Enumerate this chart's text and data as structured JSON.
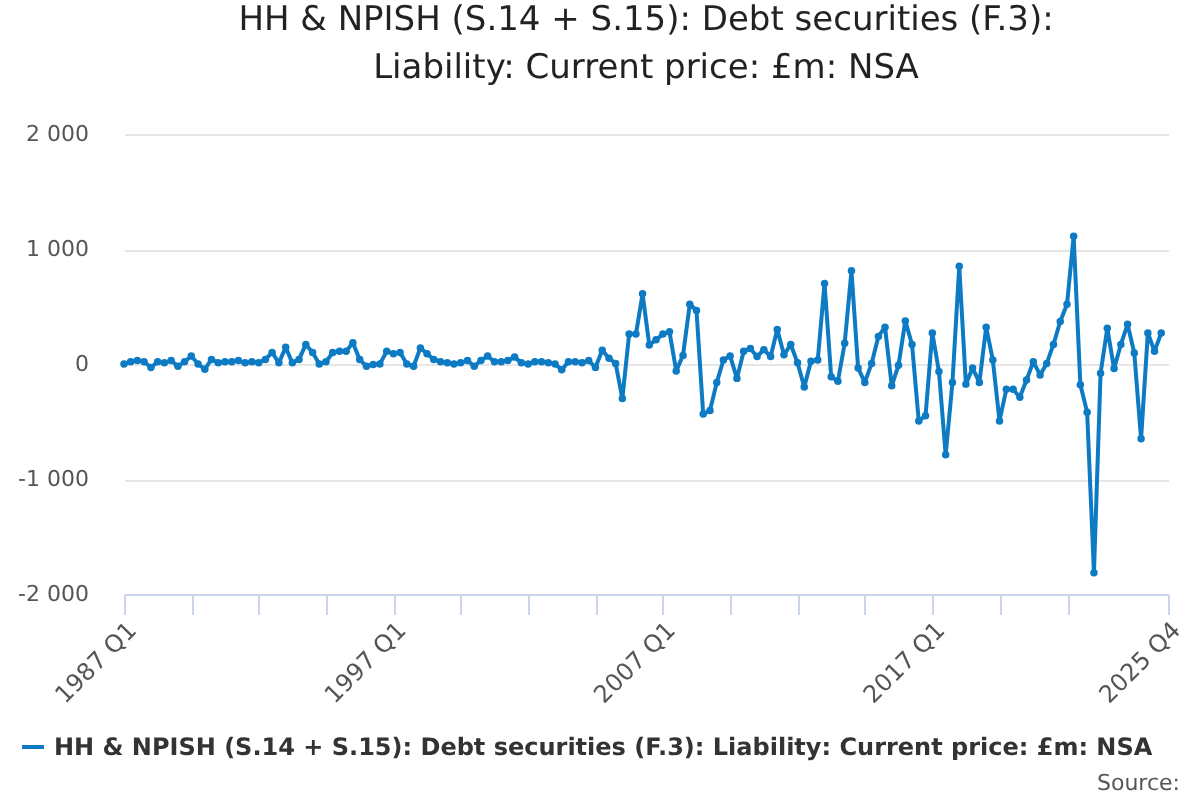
{
  "chart_data": {
    "type": "line",
    "title": "HH & NPISH (S.14 + S.15): Debt securities (F.3): Liability: Current price: £m: NSA",
    "x": [
      "1987-01",
      "1987-04",
      "1987-07",
      "1987-10",
      "1988-01",
      "1988-04",
      "1988-07",
      "1988-10",
      "1989-01",
      "1989-04",
      "1989-07",
      "1989-10",
      "1990-01",
      "1990-04",
      "1990-07",
      "1990-10",
      "1991-01",
      "1991-04",
      "1991-07",
      "1991-10",
      "1992-01",
      "1992-04",
      "1992-07",
      "1992-10",
      "1993-01",
      "1993-04",
      "1993-07",
      "1993-10",
      "1994-01",
      "1994-04",
      "1994-07",
      "1994-10",
      "1995-01",
      "1995-04",
      "1995-07",
      "1995-10",
      "1996-01",
      "1996-04",
      "1996-07",
      "1996-10",
      "1997-01",
      "1997-04",
      "1997-07",
      "1997-10",
      "1998-01",
      "1998-04",
      "1998-07",
      "1998-10",
      "1999-01",
      "1999-04",
      "1999-07",
      "1999-10",
      "2000-01",
      "2000-04",
      "2000-07",
      "2000-10",
      "2001-01",
      "2001-04",
      "2001-07",
      "2001-10",
      "2002-01",
      "2002-04",
      "2002-07",
      "2002-10",
      "2003-01",
      "2003-04",
      "2003-07",
      "2003-10",
      "2004-01",
      "2004-04",
      "2004-07",
      "2004-10",
      "2005-01",
      "2005-04",
      "2005-07",
      "2005-10",
      "2006-01",
      "2006-04",
      "2006-07",
      "2006-10",
      "2007-01",
      "2007-04",
      "2007-07",
      "2007-10",
      "2008-01",
      "2008-04",
      "2008-07",
      "2008-10",
      "2009-01",
      "2009-04",
      "2009-07",
      "2009-10",
      "2010-01",
      "2010-04",
      "2010-07",
      "2010-10",
      "2011-01",
      "2011-04",
      "2011-07",
      "2011-10",
      "2012-01",
      "2012-04",
      "2012-07",
      "2012-10",
      "2013-01",
      "2013-04",
      "2013-07",
      "2013-10",
      "2014-01",
      "2014-04",
      "2014-07",
      "2014-10",
      "2015-01",
      "2015-04",
      "2015-07",
      "2015-10",
      "2016-01",
      "2016-04",
      "2016-07",
      "2016-10",
      "2017-01",
      "2017-04",
      "2017-07",
      "2017-10",
      "2018-01",
      "2018-04",
      "2018-07",
      "2018-10",
      "2019-01",
      "2019-04",
      "2019-07",
      "2019-10",
      "2020-01",
      "2020-04",
      "2020-07",
      "2020-10",
      "2021-01",
      "2021-04",
      "2021-07",
      "2021-10",
      "2022-01",
      "2022-04",
      "2022-07",
      "2022-10",
      "2023-01",
      "2023-04",
      "2023-07",
      "2023-10",
      "2024-01",
      "2024-04",
      "2024-07",
      "2024-10",
      "2025-01",
      "2025-04",
      "2025-07"
    ],
    "series": [
      {
        "name": "HH & NPISH (S.14 + S.15): Debt securities (F.3): Liability: Current price: £m: NSA",
        "color": "#0d7ac4",
        "values": [
          0,
          20,
          30,
          20,
          -30,
          20,
          10,
          30,
          -20,
          20,
          70,
          0,
          -45,
          40,
          10,
          20,
          20,
          30,
          10,
          20,
          10,
          40,
          100,
          10,
          145,
          10,
          40,
          170,
          100,
          0,
          20,
          100,
          110,
          110,
          185,
          40,
          -20,
          -5,
          0,
          110,
          90,
          100,
          0,
          -20,
          140,
          90,
          40,
          20,
          10,
          0,
          10,
          30,
          -20,
          30,
          70,
          20,
          20,
          30,
          60,
          10,
          0,
          20,
          20,
          10,
          0,
          -50,
          20,
          20,
          10,
          30,
          -30,
          120,
          50,
          5,
          -300,
          260,
          260,
          610,
          165,
          210,
          260,
          280,
          -60,
          75,
          520,
          465,
          -435,
          -405,
          -160,
          35,
          70,
          -125,
          110,
          135,
          65,
          125,
          65,
          300,
          80,
          170,
          10,
          -200,
          25,
          35,
          700,
          -110,
          -150,
          180,
          810,
          -35,
          -160,
          5,
          240,
          320,
          -190,
          -10,
          375,
          170,
          -495,
          -450,
          270,
          -65,
          -790,
          -160,
          850,
          -175,
          -35,
          -160,
          320,
          35,
          -495,
          -220,
          -220,
          -290,
          -140,
          20,
          -95,
          5,
          170,
          370,
          520,
          1110,
          -180,
          -420,
          -1815,
          -80,
          310,
          -40,
          170,
          345,
          95,
          -650,
          270,
          110,
          270
        ]
      }
    ],
    "xlim": [
      "1987-01",
      "2025-10"
    ],
    "xticks": [
      {
        "value": "1987-01",
        "label": "1987 Q1"
      },
      {
        "value": "1989-07",
        "label": null
      },
      {
        "value": "1992-01",
        "label": null
      },
      {
        "value": "1994-07",
        "label": null
      },
      {
        "value": "1997-01",
        "label": "1997 Q1"
      },
      {
        "value": "1999-07",
        "label": null
      },
      {
        "value": "2002-01",
        "label": null
      },
      {
        "value": "2004-07",
        "label": null
      },
      {
        "value": "2007-01",
        "label": "2007 Q1"
      },
      {
        "value": "2009-07",
        "label": null
      },
      {
        "value": "2012-01",
        "label": null
      },
      {
        "value": "2014-07",
        "label": null
      },
      {
        "value": "2017-01",
        "label": "2017 Q1"
      },
      {
        "value": "2019-07",
        "label": null
      },
      {
        "value": "2022-01",
        "label": null
      },
      {
        "value": "2025-10",
        "label": "2025 Q4"
      }
    ],
    "ylim": [
      -2000,
      2000
    ],
    "yticks": [
      {
        "value": -2000,
        "label": "-2 000"
      },
      {
        "value": -1000,
        "label": "-1 000"
      },
      0,
      {
        "value": 1000,
        "label": "1 000"
      },
      {
        "value": 2000,
        "label": "2 000"
      }
    ],
    "grid": "y",
    "legend": "bottom",
    "marker": "circle",
    "line_style": "solid",
    "annotations": [
      "Source:"
    ]
  }
}
